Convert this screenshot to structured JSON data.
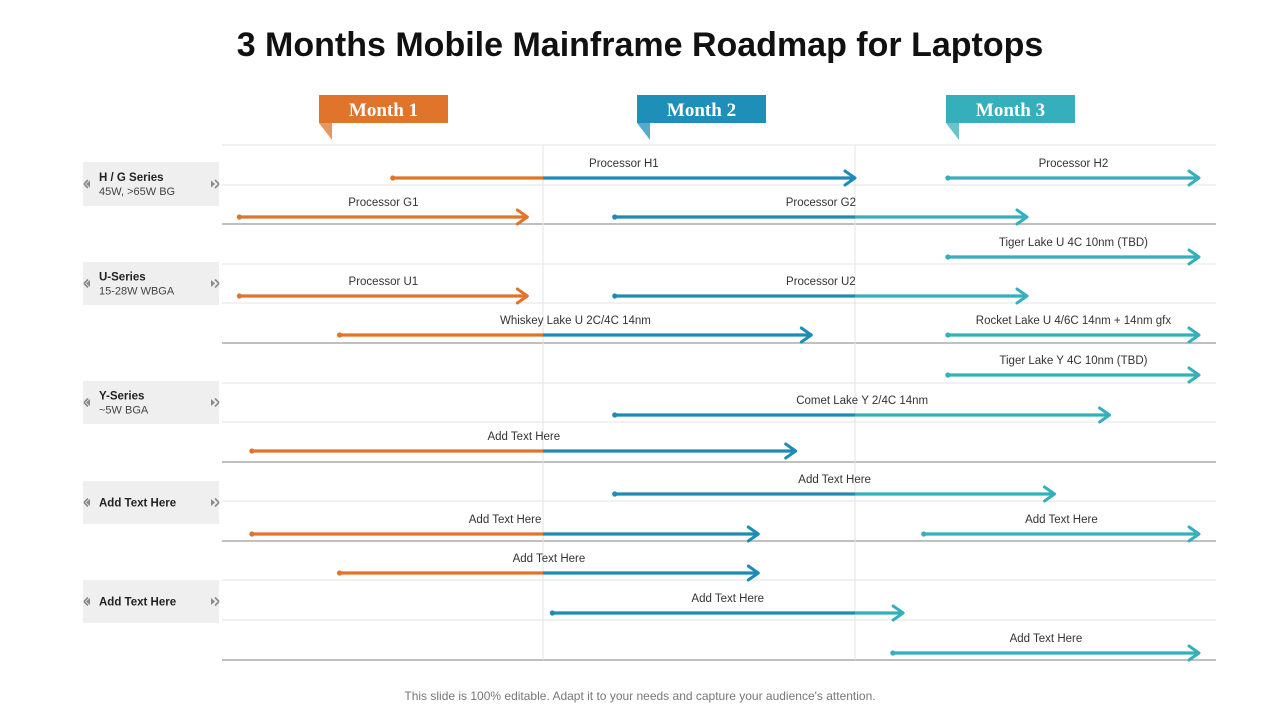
{
  "title": "3 Months Mobile Mainframe Roadmap for Laptops",
  "footer": "This slide is 100% editable. Adapt it to your needs and capture your audience's attention.",
  "colors": {
    "orange": "#E0742A",
    "blue": "#1E8BB5",
    "teal": "#36AFBC",
    "month1": "#E0742A",
    "month2": "#1E8FB8",
    "month3": "#36AFBC",
    "label_bg": "#EFEFEF",
    "grid": "#E3E3E3",
    "divider": "#9A9A9A"
  },
  "months": [
    {
      "label": "Month 1",
      "color_key": "month1"
    },
    {
      "label": "Month 2",
      "color_key": "month2"
    },
    {
      "label": "Month 3",
      "color_key": "month3"
    }
  ],
  "groups": [
    {
      "title": "H / G Series",
      "subtitle": "45W, >65W BG"
    },
    {
      "title": "U-Series",
      "subtitle": "15-28W WBGA"
    },
    {
      "title": "Y-Series",
      "subtitle": "~5W BGA"
    },
    {
      "title": "Add  Text Here",
      "subtitle": ""
    },
    {
      "title": "Add  Text Here",
      "subtitle": ""
    }
  ],
  "timeline": {
    "unit": "month",
    "range": [
      0,
      3
    ],
    "note": "start/end are positions on the 3-month timeline (0 = start of Month 1, 3 = end of Month 3)"
  },
  "items": [
    {
      "label": "Processor H1",
      "start": 0.52,
      "end": 2.0
    },
    {
      "label": "Processor H2",
      "start": 2.27,
      "end": 3.0
    },
    {
      "label": "Processor G1",
      "start": 0.03,
      "end": 0.95
    },
    {
      "label": "Processor G2",
      "start": 1.23,
      "end": 2.5
    },
    {
      "label": "Tiger Lake U 4C 10nm (TBD)",
      "start": 2.27,
      "end": 3.0
    },
    {
      "label": "Processor U1",
      "start": 0.03,
      "end": 0.95
    },
    {
      "label": "Processor U2",
      "start": 1.23,
      "end": 2.5
    },
    {
      "label": "Whiskey Lake U 2C/4C 14nm",
      "start": 0.35,
      "end": 1.86
    },
    {
      "label": "Rocket Lake U 4/6C 14nm + 14nm gfx",
      "start": 2.27,
      "end": 3.0
    },
    {
      "label": "Tiger Lake Y 4C 10nm (TBD)",
      "start": 2.27,
      "end": 3.0
    },
    {
      "label": "Comet Lake Y 2/4C 14nm",
      "start": 1.23,
      "end": 2.74
    },
    {
      "label": "Add Text Here",
      "start": 0.07,
      "end": 1.81
    },
    {
      "label": "Add Text Here",
      "start": 1.23,
      "end": 2.58
    },
    {
      "label": "Add Text Here",
      "start": 0.07,
      "end": 1.69
    },
    {
      "label": "Add Text Here",
      "start": 2.2,
      "end": 3.0
    },
    {
      "label": "Add Text Here",
      "start": 0.35,
      "end": 1.69
    },
    {
      "label": "Add Text Here",
      "start": 1.03,
      "end": 2.14
    },
    {
      "label": "Add Text Here",
      "start": 2.11,
      "end": 3.0
    }
  ]
}
